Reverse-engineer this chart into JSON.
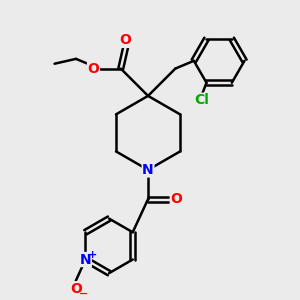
{
  "background_color": "#ebebeb",
  "bond_color": "#000000",
  "bond_width": 1.8,
  "atom_colors": {
    "O": "#ff0000",
    "N": "#0000ff",
    "Cl": "#00aa00",
    "C": "#000000"
  },
  "figsize": [
    3.0,
    3.0
  ],
  "dpi": 100
}
